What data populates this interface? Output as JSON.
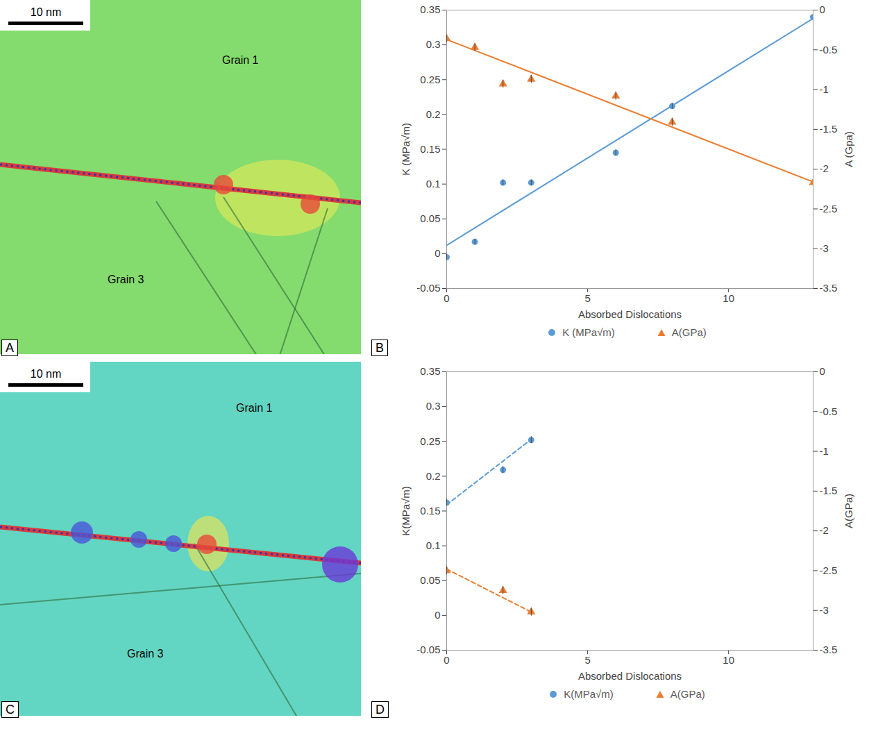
{
  "images": [
    {
      "panel_label": "A",
      "scale_bar": "10 nm",
      "regions": [
        "Grain 1",
        "Grain 3"
      ]
    },
    {
      "panel_label": "C",
      "scale_bar": "10 nm",
      "regions": [
        "Grain 1",
        "Grain 3"
      ]
    }
  ],
  "chart_data": [
    {
      "type": "scatter",
      "panel_label": "B",
      "x_label": "Absorbed Dislocations",
      "y_label": "K (MPa√m)",
      "y2_label": "A (Gpa)",
      "xlim": [
        0,
        13
      ],
      "xticks": [
        0,
        5,
        10
      ],
      "ylim": [
        -0.05,
        0.35
      ],
      "yticks": [
        -0.05,
        0,
        0.05,
        0.1,
        0.15,
        0.2,
        0.25,
        0.3,
        0.35
      ],
      "y2lim": [
        -3.5,
        0
      ],
      "y2ticks": [
        -3.5,
        -3,
        -2.5,
        -2,
        -1.5,
        -1,
        -0.5,
        0
      ],
      "grid": false,
      "legend": "bottom",
      "x": [
        0,
        1,
        2,
        3,
        6,
        8,
        13
      ],
      "series": [
        {
          "name": "K (MPa√m)",
          "color": "#5b9bd5",
          "marker": "circle",
          "line_style": "solid",
          "values": [
            -0.005,
            0.017,
            0.102,
            0.102,
            0.145,
            0.212,
            0.34
          ],
          "errors": [
            0.004,
            0.004,
            0.004,
            0.004,
            0.004,
            0.004,
            0.004
          ],
          "trend_x": [
            0,
            13
          ],
          "trend_values": [
            0.012,
            0.338
          ]
        },
        {
          "name": "A(GPa)",
          "axis": "y2",
          "color": "#ed7d31",
          "marker": "triangle",
          "line_style": "solid",
          "values": [
            -0.36,
            -0.47,
            -0.93,
            -0.87,
            -1.08,
            -1.41,
            -2.17
          ],
          "errors": [
            0.05,
            0.05,
            0.05,
            0.05,
            0.05,
            0.05,
            0.05
          ],
          "trend_x": [
            0,
            13
          ],
          "trend_values": [
            -0.37,
            -2.16
          ]
        }
      ]
    },
    {
      "type": "scatter",
      "panel_label": "D",
      "x_label": "Absorbed Dislocations",
      "y_label": "K(MPa√m)",
      "y2_label": "A(GPa)",
      "xlim": [
        0,
        13
      ],
      "xticks": [
        0,
        5,
        10
      ],
      "ylim": [
        -0.05,
        0.35
      ],
      "yticks": [
        -0.05,
        0,
        0.05,
        0.1,
        0.15,
        0.2,
        0.25,
        0.3,
        0.35
      ],
      "y2lim": [
        -3.5,
        0
      ],
      "y2ticks": [
        -3.5,
        -3,
        -2.5,
        -2,
        -1.5,
        -1,
        -0.5,
        0
      ],
      "grid": false,
      "legend": "bottom",
      "x": [
        0,
        2,
        3
      ],
      "series": [
        {
          "name": "K(MPa√m)",
          "color": "#5b9bd5",
          "marker": "circle",
          "line_style": "dashed",
          "values": [
            0.162,
            0.209,
            0.252
          ],
          "errors": [
            0.005,
            0.005,
            0.005
          ],
          "trend_x": [
            0,
            3
          ],
          "trend_values": [
            0.159,
            0.253
          ]
        },
        {
          "name": "A(GPa)",
          "axis": "y2",
          "color": "#ed7d31",
          "marker": "triangle",
          "line_style": "dashed",
          "values": [
            -2.5,
            -2.75,
            -3.02
          ],
          "errors": [
            0.05,
            0.05,
            0.05
          ],
          "trend_x": [
            0,
            3
          ],
          "trend_values": [
            -2.48,
            -3.02
          ]
        }
      ]
    }
  ]
}
